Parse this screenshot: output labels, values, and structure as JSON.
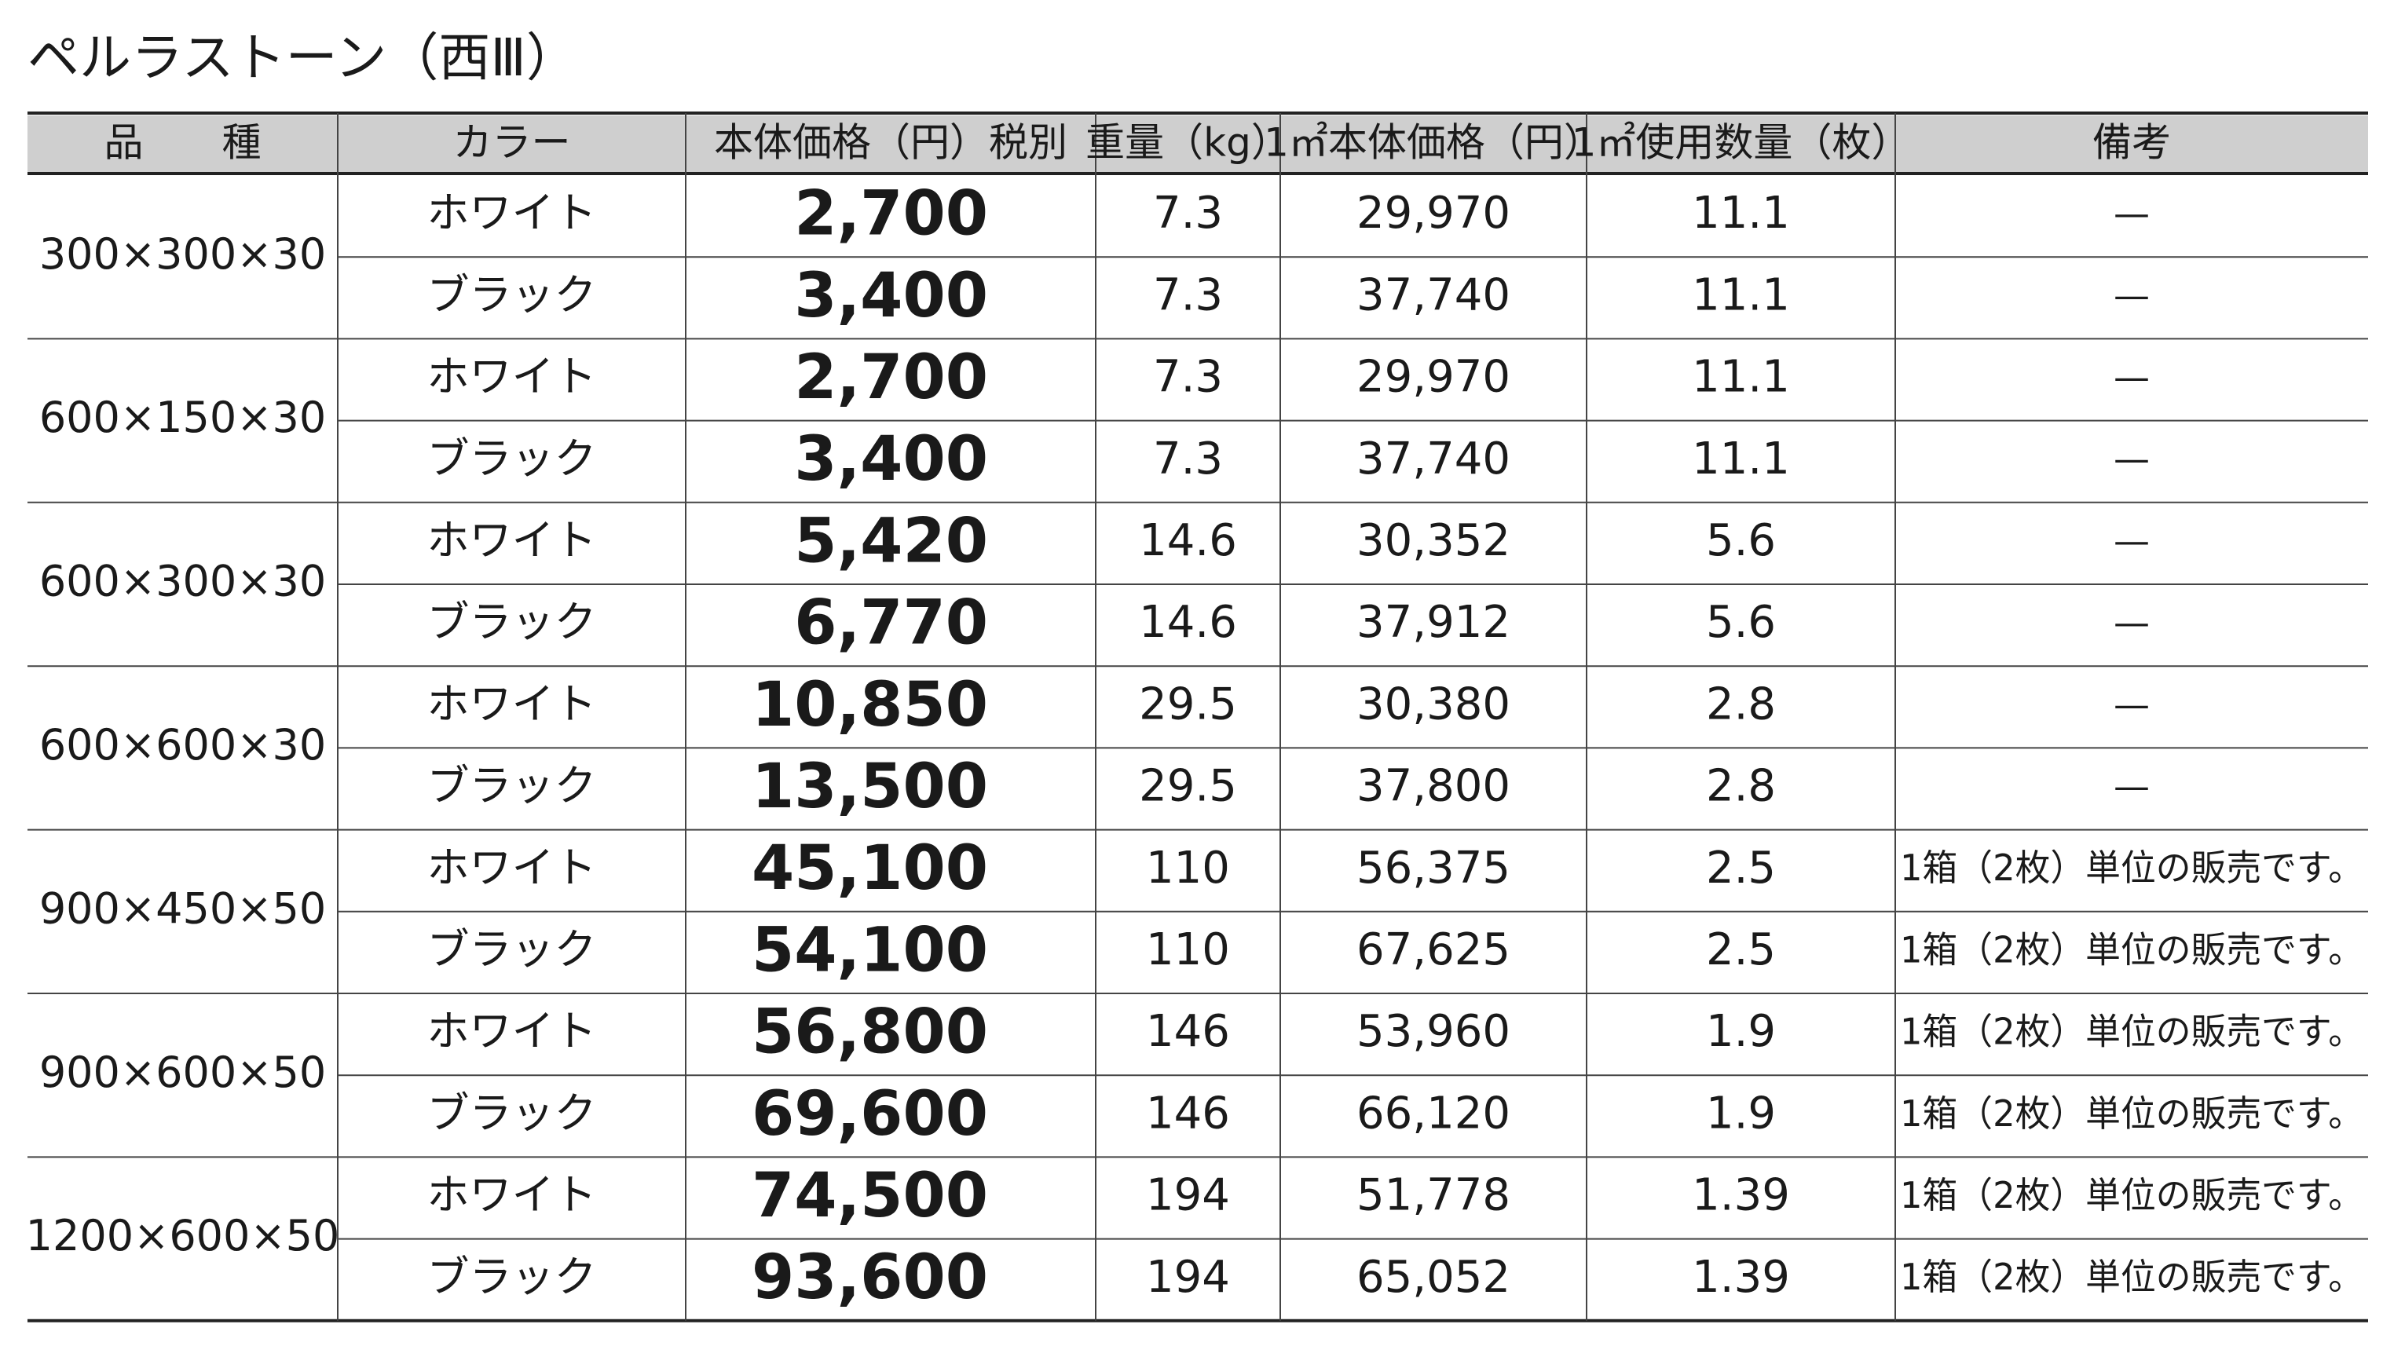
{
  "title": "ペルラストーン（西Ⅲ）",
  "table": {
    "headers": [
      "品　　種",
      "カラー",
      "本体価格（円）税別",
      "重量（kg）",
      "1㎡本体価格（円）",
      "1㎡使用数量（枚）",
      "備考"
    ],
    "groups": [
      {
        "size": "300×300×30",
        "rows": [
          [
            "ホワイト",
            "2,700",
            "7.3",
            "29,970",
            "11.1",
            "—"
          ],
          [
            "ブラック",
            "3,400",
            "7.3",
            "37,740",
            "11.1",
            "—"
          ]
        ]
      },
      {
        "size": "600×150×30",
        "rows": [
          [
            "ホワイト",
            "2,700",
            "7.3",
            "29,970",
            "11.1",
            "—"
          ],
          [
            "ブラック",
            "3,400",
            "7.3",
            "37,740",
            "11.1",
            "—"
          ]
        ]
      },
      {
        "size": "600×300×30",
        "rows": [
          [
            "ホワイト",
            "5,420",
            "14.6",
            "30,352",
            "5.6",
            "—"
          ],
          [
            "ブラック",
            "6,770",
            "14.6",
            "37,912",
            "5.6",
            "—"
          ]
        ]
      },
      {
        "size": "600×600×30",
        "rows": [
          [
            "ホワイト",
            "10,850",
            "29.5",
            "30,380",
            "2.8",
            "—"
          ],
          [
            "ブラック",
            "13,500",
            "29.5",
            "37,800",
            "2.8",
            "—"
          ]
        ]
      },
      {
        "size": "900×450×50",
        "rows": [
          [
            "ホワイト",
            "45,100",
            "110",
            "56,375",
            "2.5",
            "1箱（2枚）単位の販売です。"
          ],
          [
            "ブラック",
            "54,100",
            "110",
            "67,625",
            "2.5",
            "1箱（2枚）単位の販売です。"
          ]
        ]
      },
      {
        "size": "900×600×50",
        "rows": [
          [
            "ホワイト",
            "56,800",
            "146",
            "53,960",
            "1.9",
            "1箱（2枚）単位の販売です。"
          ],
          [
            "ブラック",
            "69,600",
            "146",
            "66,120",
            "1.9",
            "1箱（2枚）単位の販売です。"
          ]
        ]
      },
      {
        "size": "1200×600×50",
        "rows": [
          [
            "ホワイト",
            "74,500",
            "194",
            "51,778",
            "1.39",
            "1箱（2枚）単位の販売です。"
          ],
          [
            "ブラック",
            "93,600",
            "194",
            "65,052",
            "1.39",
            "1箱（2枚）単位の販売です。"
          ]
        ]
      }
    ]
  }
}
